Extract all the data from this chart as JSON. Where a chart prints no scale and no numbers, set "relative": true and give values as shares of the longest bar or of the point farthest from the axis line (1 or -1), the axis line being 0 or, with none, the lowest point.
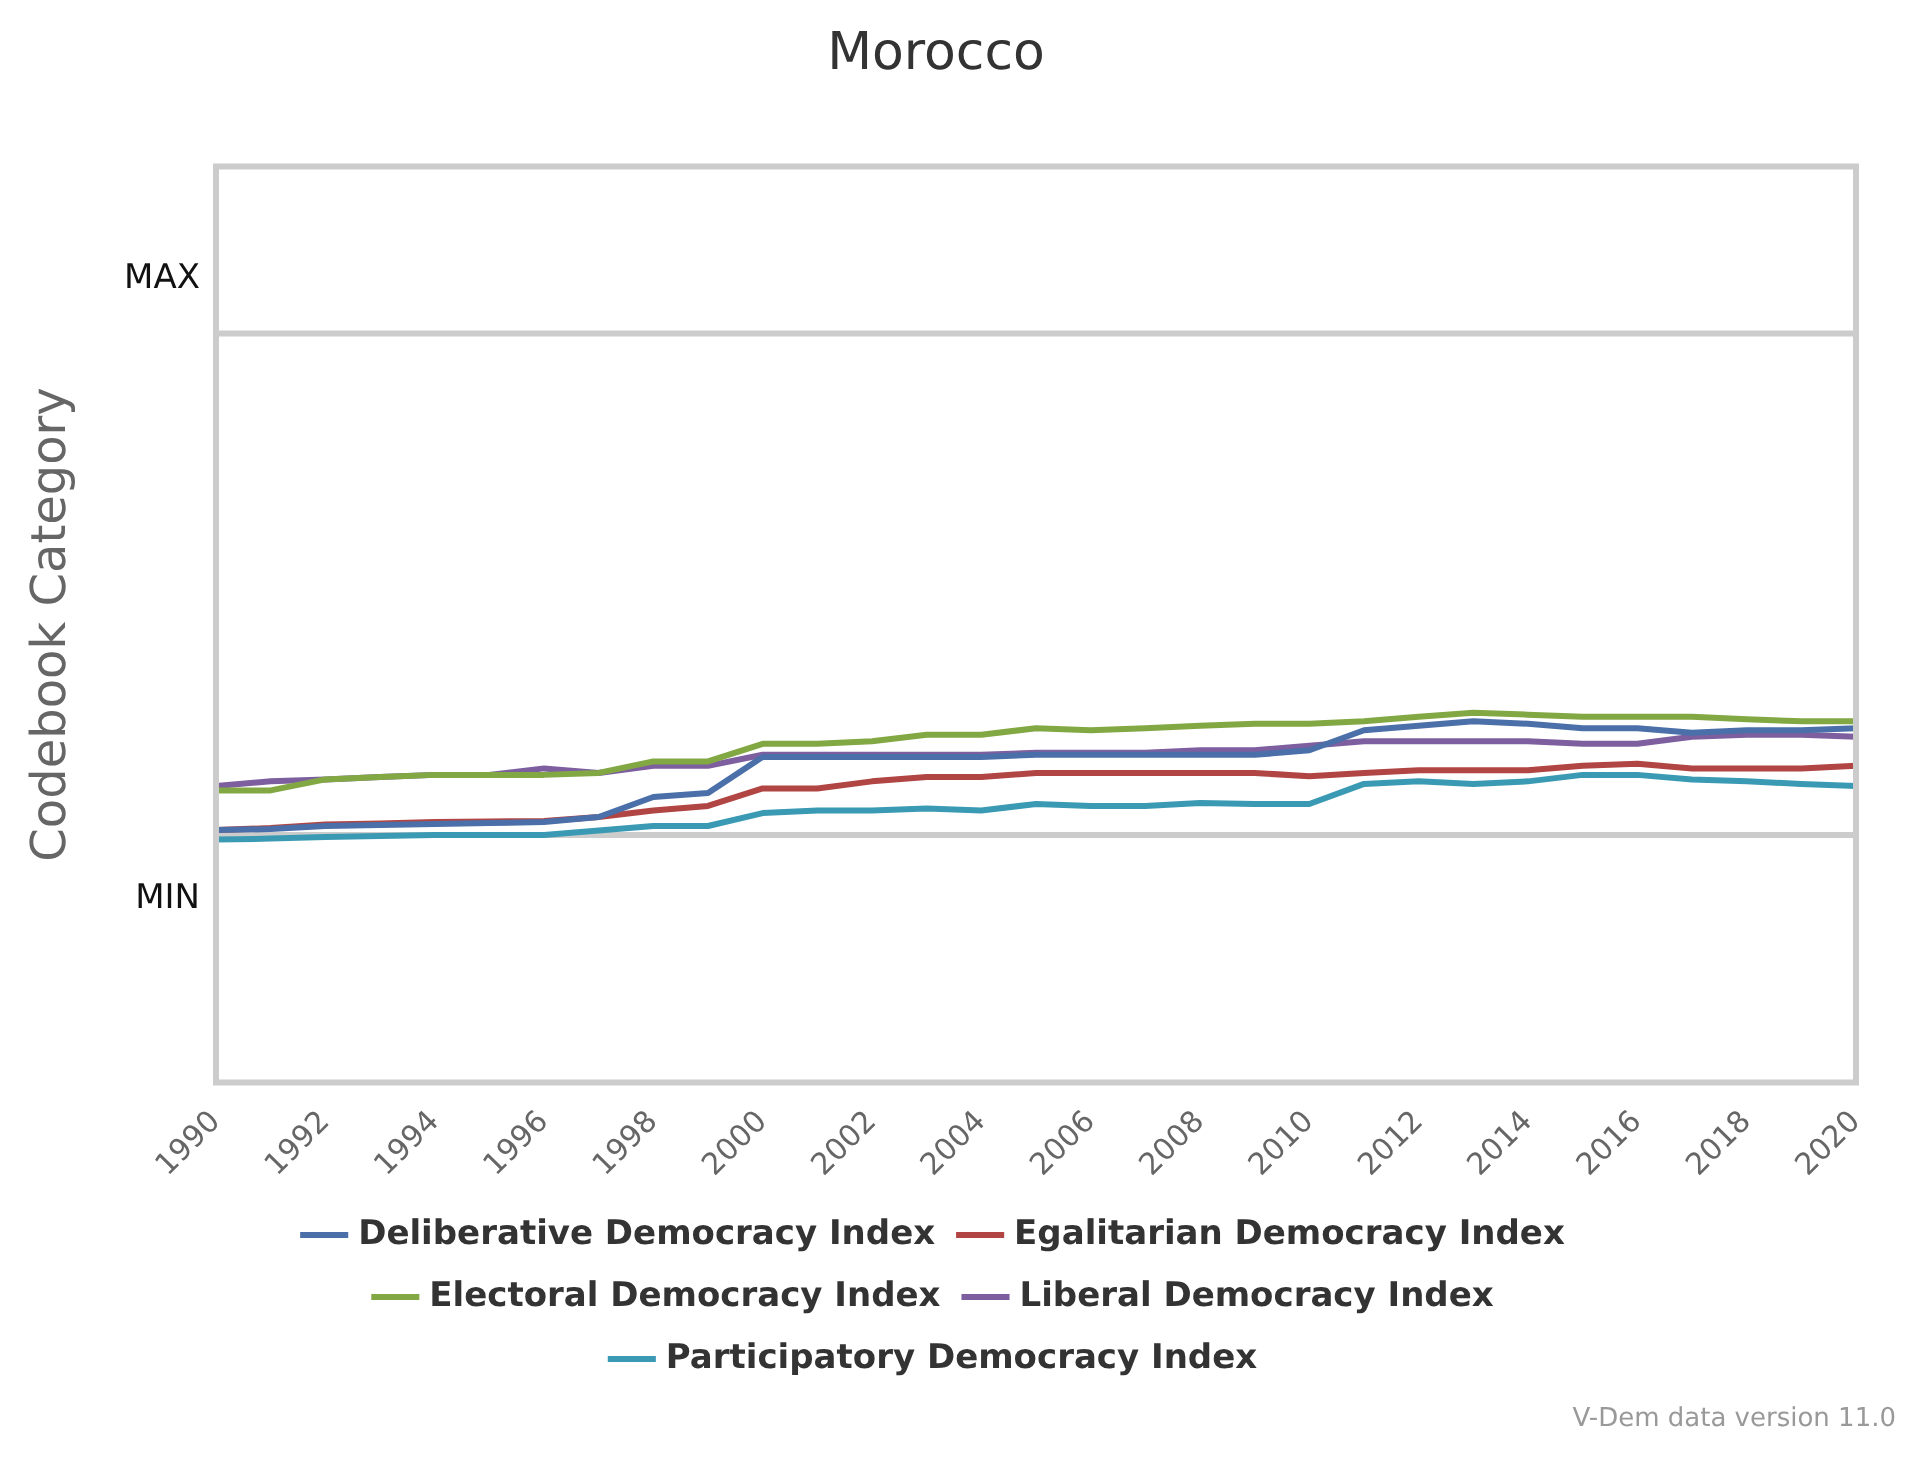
{
  "chart_data": {
    "type": "line",
    "title": "Morocco",
    "ylabel": "Codebook Category",
    "relative": true,
    "x": [
      1990,
      1991,
      1992,
      1993,
      1994,
      1995,
      1996,
      1997,
      1998,
      1999,
      2000,
      2001,
      2002,
      2003,
      2004,
      2005,
      2006,
      2007,
      2008,
      2009,
      2010,
      2011,
      2012,
      2013,
      2014,
      2015,
      2016,
      2017,
      2018,
      2019,
      2020
    ],
    "xlim": [
      1990,
      2020
    ],
    "xticks": [
      1990,
      1992,
      1994,
      1996,
      1998,
      2000,
      2002,
      2004,
      2006,
      2008,
      2010,
      2012,
      2014,
      2016,
      2018,
      2020
    ],
    "ref_lines": [
      {
        "axis": "y",
        "value": 0,
        "label": "MIN",
        "color": "#cccccc"
      },
      {
        "axis": "y",
        "value": 4.1,
        "label": "MAX",
        "color": "#cccccc"
      }
    ],
    "grid": false,
    "legend": "bottom",
    "marker": "none",
    "line_style": "solid",
    "annotations": [
      "V-Dem data version 11.0"
    ],
    "series": [
      {
        "name": "Deliberative Democracy Index",
        "color": "#4b6fa8",
        "values": [
          0.041,
          0.049,
          0.074,
          0.082,
          0.09,
          0.098,
          0.107,
          0.148,
          0.311,
          0.344,
          0.639,
          0.639,
          0.639,
          0.639,
          0.639,
          0.656,
          0.656,
          0.656,
          0.656,
          0.656,
          0.693,
          0.857,
          0.893,
          0.93,
          0.91,
          0.873,
          0.873,
          0.836,
          0.857,
          0.857,
          0.873
        ]
      },
      {
        "name": "Egalitarian Democracy Index",
        "color": "#b04543",
        "values": [
          0.041,
          0.057,
          0.086,
          0.094,
          0.107,
          0.111,
          0.115,
          0.148,
          0.201,
          0.238,
          0.381,
          0.381,
          0.439,
          0.475,
          0.475,
          0.508,
          0.508,
          0.508,
          0.508,
          0.508,
          0.48,
          0.508,
          0.529,
          0.529,
          0.529,
          0.566,
          0.582,
          0.545,
          0.545,
          0.545,
          0.566
        ]
      },
      {
        "name": "Electoral Democracy Index",
        "color": "#82a844",
        "values": [
          0.365,
          0.365,
          0.455,
          0.475,
          0.492,
          0.492,
          0.492,
          0.508,
          0.602,
          0.602,
          0.746,
          0.746,
          0.766,
          0.82,
          0.82,
          0.873,
          0.857,
          0.873,
          0.893,
          0.91,
          0.91,
          0.93,
          0.967,
          1,
          0.984,
          0.967,
          0.967,
          0.967,
          0.947,
          0.93,
          0.93
        ]
      },
      {
        "name": "Liberal Democracy Index",
        "color": "#7d5fa0",
        "values": [
          0.402,
          0.439,
          0.455,
          0.475,
          0.492,
          0.492,
          0.545,
          0.508,
          0.566,
          0.566,
          0.656,
          0.656,
          0.656,
          0.656,
          0.656,
          0.672,
          0.672,
          0.672,
          0.693,
          0.693,
          0.73,
          0.766,
          0.766,
          0.766,
          0.766,
          0.746,
          0.746,
          0.803,
          0.82,
          0.82,
          0.803
        ]
      },
      {
        "name": "Participatory Democracy Index",
        "color": "#3a9ab3",
        "values": [
          -0.037,
          -0.029,
          -0.016,
          -0.008,
          0,
          0,
          0,
          0.037,
          0.074,
          0.074,
          0.18,
          0.201,
          0.201,
          0.217,
          0.201,
          0.254,
          0.238,
          0.238,
          0.262,
          0.254,
          0.254,
          0.418,
          0.439,
          0.418,
          0.439,
          0.492,
          0.492,
          0.455,
          0.439,
          0.418,
          0.402
        ]
      }
    ]
  }
}
